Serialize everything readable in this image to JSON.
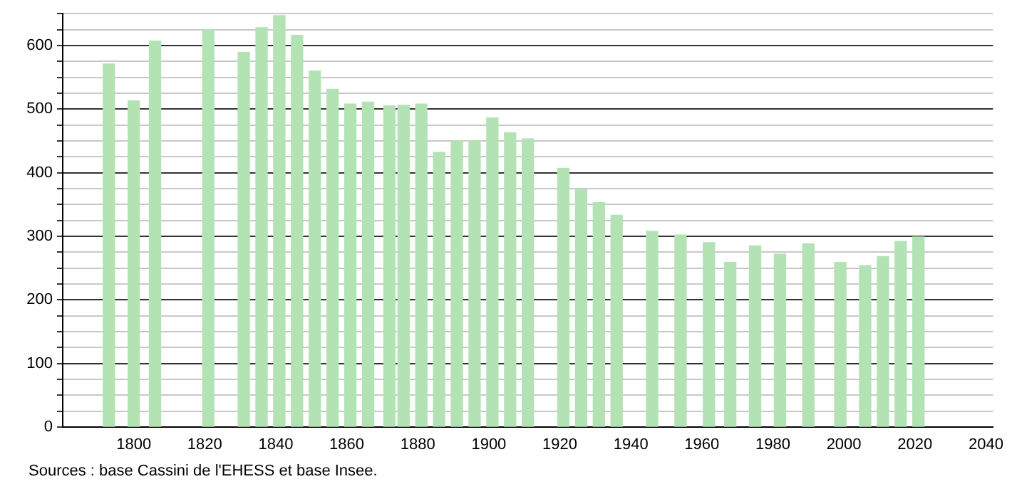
{
  "chart_data": {
    "type": "bar",
    "x": [
      1793,
      1800,
      1806,
      1821,
      1831,
      1836,
      1841,
      1846,
      1851,
      1856,
      1861,
      1866,
      1872,
      1876,
      1881,
      1886,
      1891,
      1896,
      1901,
      1906,
      1911,
      1921,
      1926,
      1931,
      1936,
      1946,
      1954,
      1962,
      1968,
      1975,
      1982,
      1990,
      1999,
      2006,
      2011,
      2016,
      2021
    ],
    "values": [
      571,
      513,
      607,
      624,
      589,
      628,
      647,
      616,
      560,
      531,
      508,
      511,
      505,
      506,
      508,
      432,
      450,
      450,
      486,
      463,
      453,
      407,
      374,
      353,
      333,
      308,
      302,
      290,
      259,
      285,
      272,
      288,
      259,
      254,
      268,
      292,
      299
    ],
    "color": "#b3e3b5",
    "xlim": [
      1780,
      2042
    ],
    "xticks": [
      1800,
      1820,
      1840,
      1860,
      1880,
      1900,
      1920,
      1940,
      1960,
      1980,
      2000,
      2020,
      2040
    ],
    "ylim": [
      0,
      650
    ],
    "yticks": [
      0,
      {
        "value": 25,
        "label": null
      },
      {
        "value": 50,
        "label": null
      },
      {
        "value": 75,
        "label": null
      },
      100,
      {
        "value": 125,
        "label": null
      },
      {
        "value": 150,
        "label": null
      },
      {
        "value": 175,
        "label": null
      },
      200,
      {
        "value": 225,
        "label": null
      },
      {
        "value": 250,
        "label": null
      },
      {
        "value": 275,
        "label": null
      },
      300,
      {
        "value": 325,
        "label": null
      },
      {
        "value": 350,
        "label": null
      },
      {
        "value": 375,
        "label": null
      },
      400,
      {
        "value": 425,
        "label": null
      },
      {
        "value": 450,
        "label": null
      },
      {
        "value": 475,
        "label": null
      },
      500,
      {
        "value": 525,
        "label": null
      },
      {
        "value": 550,
        "label": null
      },
      {
        "value": 575,
        "label": null
      },
      600,
      {
        "value": 625,
        "label": null
      },
      {
        "value": 650,
        "label": null
      }
    ],
    "grid": "y",
    "annotations": [
      "Sources : base Cassini de l'EHESS et base Insee."
    ]
  }
}
